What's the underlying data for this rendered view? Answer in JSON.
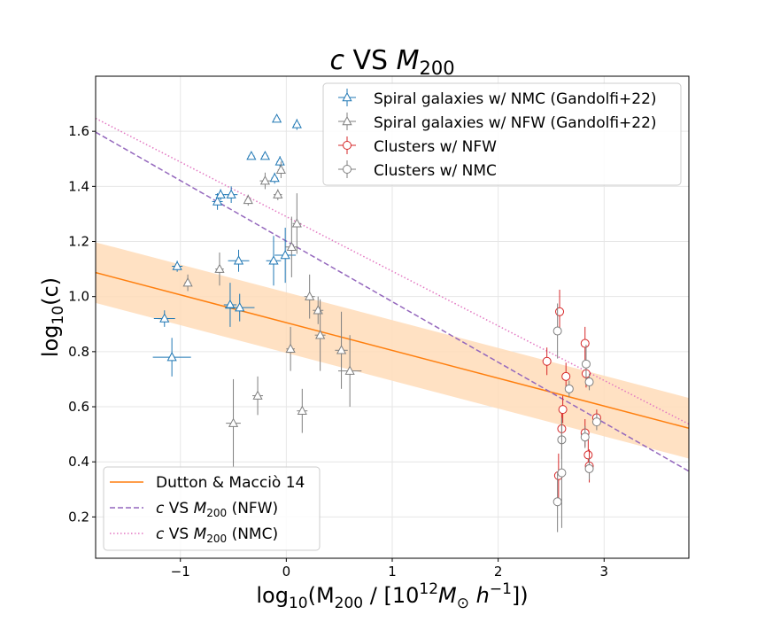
{
  "chart_data": {
    "type": "scatter",
    "title": {
      "pre": "c",
      "mid": " VS ",
      "main": "M",
      "sub": "200"
    },
    "xlabel": {
      "pre": "log",
      "sub": "10",
      "mid": "(M",
      "sub2": "200",
      "mid2": " / [10",
      "sup": "12",
      "m": "M",
      "sub3": "⊙",
      "h": " h",
      "sup2": "−1",
      "post": "])"
    },
    "ylabel": {
      "pre": "log",
      "sub": "10",
      "mid": "(c)"
    },
    "xlim": [
      -1.8,
      3.8
    ],
    "ylim": [
      0.05,
      1.8
    ],
    "xticks": [
      -1,
      0,
      1,
      2,
      3
    ],
    "yticks": [
      0.2,
      0.4,
      0.6,
      0.8,
      1.0,
      1.2,
      1.4,
      1.6
    ],
    "xtick_labels": [
      "−1",
      "0",
      "1",
      "2",
      "3"
    ],
    "ytick_labels": [
      "0.2",
      "0.4",
      "0.6",
      "0.8",
      "1.0",
      "1.2",
      "1.4",
      "1.6"
    ],
    "grid": true,
    "colors": {
      "spiral_nmc": "#1f77b4",
      "spiral_nfw": "#7f7f7f",
      "clusters_nfw": "#d62728",
      "clusters_nmc": "#7f7f7f",
      "dutton": "#ff7f0e",
      "band": "#ffdcb8",
      "fit_nfw": "#9467bd",
      "fit_nmc": "#e377c2"
    },
    "lines": [
      {
        "key": "dutton",
        "x": [
          -1.8,
          3.8
        ],
        "y": [
          1.087,
          0.522
        ],
        "band": 0.11
      },
      {
        "key": "fit_nfw",
        "x": [
          -1.8,
          3.8
        ],
        "y": [
          1.597,
          0.366
        ]
      },
      {
        "key": "fit_nmc",
        "x": [
          -1.8,
          3.8
        ],
        "y": [
          1.647,
          0.537
        ]
      }
    ],
    "series": [
      {
        "key": "spiral_nmc",
        "marker": "triangle",
        "points": [
          {
            "x": -1.15,
            "y": 0.92,
            "xe": 0.1,
            "ye": 0.03
          },
          {
            "x": -1.08,
            "y": 0.78,
            "xe": 0.18,
            "ye": 0.07
          },
          {
            "x": -1.03,
            "y": 1.11,
            "xe": 0.05,
            "ye": 0.02
          },
          {
            "x": -0.65,
            "y": 1.345,
            "xe": 0.05,
            "ye": 0.03
          },
          {
            "x": -0.62,
            "y": 1.37,
            "xe": 0.05,
            "ye": 0.02
          },
          {
            "x": -0.52,
            "y": 1.37,
            "xe": 0.06,
            "ye": 0.03
          },
          {
            "x": -0.53,
            "y": 0.97,
            "xe": 0.06,
            "ye": 0.08
          },
          {
            "x": -0.45,
            "y": 1.13,
            "xe": 0.1,
            "ye": 0.04
          },
          {
            "x": -0.44,
            "y": 0.96,
            "xe": 0.14,
            "ye": 0.05
          },
          {
            "x": -0.33,
            "y": 1.51,
            "xe": 0.03,
            "ye": 0.01
          },
          {
            "x": -0.2,
            "y": 1.51,
            "xe": 0.03,
            "ye": 0.01
          },
          {
            "x": -0.12,
            "y": 1.13,
            "xe": 0.07,
            "ye": 0.09
          },
          {
            "x": -0.11,
            "y": 1.43,
            "xe": 0.03,
            "ye": 0.02
          },
          {
            "x": -0.09,
            "y": 1.645,
            "xe": 0.03,
            "ye": 0.01
          },
          {
            "x": -0.06,
            "y": 1.49,
            "xe": 0.03,
            "ye": 0.02
          },
          {
            "x": -0.01,
            "y": 1.15,
            "xe": 0.1,
            "ye": 0.1
          },
          {
            "x": 0.1,
            "y": 1.625,
            "xe": 0.03,
            "ye": 0.02
          }
        ]
      },
      {
        "key": "spiral_nfw",
        "marker": "triangle",
        "points": [
          {
            "x": -0.93,
            "y": 1.05,
            "xe": 0.03,
            "ye": 0.03
          },
          {
            "x": -0.63,
            "y": 1.1,
            "xe": 0.04,
            "ye": 0.06
          },
          {
            "x": -0.5,
            "y": 0.54,
            "xe": 0.07,
            "ye": 0.16
          },
          {
            "x": -0.36,
            "y": 1.35,
            "xe": 0.03,
            "ye": 0.02
          },
          {
            "x": -0.27,
            "y": 0.64,
            "xe": 0.05,
            "ye": 0.07
          },
          {
            "x": -0.2,
            "y": 1.42,
            "xe": 0.05,
            "ye": 0.03
          },
          {
            "x": -0.08,
            "y": 1.37,
            "xe": 0.04,
            "ye": 0.02
          },
          {
            "x": -0.05,
            "y": 1.46,
            "xe": 0.03,
            "ye": 0.03
          },
          {
            "x": 0.04,
            "y": 0.81,
            "xe": 0.04,
            "ye": 0.08
          },
          {
            "x": 0.05,
            "y": 1.18,
            "xe": 0.06,
            "ye": 0.11
          },
          {
            "x": 0.1,
            "y": 1.265,
            "xe": 0.04,
            "ye": 0.11
          },
          {
            "x": 0.15,
            "y": 0.585,
            "xe": 0.05,
            "ye": 0.08
          },
          {
            "x": 0.22,
            "y": 1.0,
            "xe": 0.05,
            "ye": 0.08
          },
          {
            "x": 0.3,
            "y": 0.95,
            "xe": 0.05,
            "ye": 0.05
          },
          {
            "x": 0.32,
            "y": 0.86,
            "xe": 0.05,
            "ye": 0.13
          },
          {
            "x": 0.52,
            "y": 0.805,
            "xe": 0.06,
            "ye": 0.14
          },
          {
            "x": 0.6,
            "y": 0.73,
            "xe": 0.11,
            "ye": 0.13
          }
        ]
      },
      {
        "key": "clusters_nfw",
        "marker": "circle",
        "points": [
          {
            "x": 2.46,
            "y": 0.765,
            "ye": 0.05
          },
          {
            "x": 2.57,
            "y": 0.35,
            "ye": 0.08
          },
          {
            "x": 2.58,
            "y": 0.945,
            "ye": 0.08
          },
          {
            "x": 2.6,
            "y": 0.52,
            "ye": 0.06
          },
          {
            "x": 2.61,
            "y": 0.59,
            "ye": 0.05
          },
          {
            "x": 2.64,
            "y": 0.71,
            "ye": 0.05
          },
          {
            "x": 2.82,
            "y": 0.83,
            "ye": 0.06
          },
          {
            "x": 2.82,
            "y": 0.505,
            "ye": 0.05
          },
          {
            "x": 2.83,
            "y": 0.72,
            "ye": 0.05
          },
          {
            "x": 2.85,
            "y": 0.425,
            "ye": 0.06
          },
          {
            "x": 2.86,
            "y": 0.385,
            "ye": 0.06
          },
          {
            "x": 2.93,
            "y": 0.56,
            "ye": 0.03
          }
        ]
      },
      {
        "key": "clusters_nmc",
        "marker": "circle",
        "points": [
          {
            "x": 2.56,
            "y": 0.875,
            "ye": 0.1
          },
          {
            "x": 2.56,
            "y": 0.255,
            "ye": 0.11
          },
          {
            "x": 2.6,
            "y": 0.48,
            "ye": 0.07
          },
          {
            "x": 2.6,
            "y": 0.36,
            "ye": 0.2
          },
          {
            "x": 2.67,
            "y": 0.665,
            "ye": 0.03
          },
          {
            "x": 2.82,
            "y": 0.49,
            "ye": 0.04
          },
          {
            "x": 2.83,
            "y": 0.755,
            "ye": 0.07
          },
          {
            "x": 2.86,
            "y": 0.69,
            "ye": 0.03
          },
          {
            "x": 2.86,
            "y": 0.375,
            "ye": 0.04
          },
          {
            "x": 2.93,
            "y": 0.545,
            "ye": 0.03
          }
        ]
      }
    ],
    "legend_top": {
      "placement": "top-right",
      "entries": [
        {
          "key": "spiral_nmc",
          "label": "Spiral galaxies w/ NMC (Gandolfi+22)",
          "marker": "triangle"
        },
        {
          "key": "spiral_nfw",
          "label": "Spiral galaxies w/ NFW (Gandolfi+22)",
          "marker": "triangle"
        },
        {
          "key": "clusters_nfw",
          "label": "Clusters w/ NFW",
          "marker": "circle"
        },
        {
          "key": "clusters_nmc",
          "label": "Clusters w/ NMC",
          "marker": "circle"
        }
      ]
    },
    "legend_bottom": {
      "placement": "lower-left",
      "entries": [
        {
          "key": "dutton",
          "label": "Dutton & Macciò 14",
          "style": "solid"
        },
        {
          "key": "fit_nfw",
          "label": {
            "pre": "c",
            "mid": " VS ",
            "main": "M",
            "sub": "200",
            "post": " (NFW)"
          },
          "style": "dashed"
        },
        {
          "key": "fit_nmc",
          "label": {
            "pre": "c",
            "mid": " VS ",
            "main": "M",
            "sub": "200",
            "post": " (NMC)"
          },
          "style": "dotted"
        }
      ]
    }
  }
}
